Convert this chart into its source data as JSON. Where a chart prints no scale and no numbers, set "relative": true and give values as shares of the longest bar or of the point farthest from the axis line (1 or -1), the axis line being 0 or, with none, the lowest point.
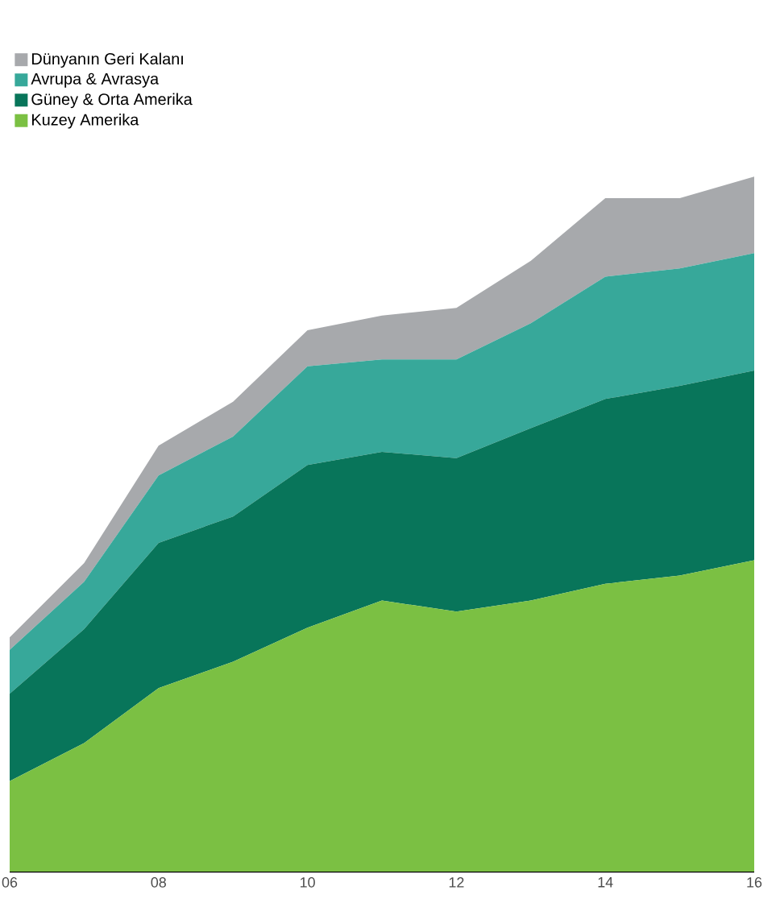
{
  "chart_data": {
    "type": "area",
    "stacked": true,
    "relative": true,
    "tick_labels": "x",
    "legend": "top left",
    "categories": [
      "06",
      null,
      "08",
      null,
      "10",
      null,
      "12",
      null,
      "14",
      null,
      "16"
    ],
    "series": [
      {
        "name": "Kuzey Amerika",
        "color": "#7bc043",
        "values": [
          0.13,
          0.185,
          0.264,
          0.302,
          0.351,
          0.39,
          0.374,
          0.39,
          0.414,
          0.426,
          0.448
        ]
      },
      {
        "name": "Güney & Orta Amerika",
        "color": "#08755a",
        "values": [
          0.126,
          0.164,
          0.209,
          0.209,
          0.234,
          0.214,
          0.221,
          0.248,
          0.266,
          0.273,
          0.273
        ]
      },
      {
        "name": "Avrupa & Avrasya",
        "color": "#37a89a",
        "values": [
          0.063,
          0.068,
          0.097,
          0.115,
          0.142,
          0.133,
          0.142,
          0.151,
          0.176,
          0.169,
          0.169
        ]
      },
      {
        "name": "Dünyanın Geri Kalanı",
        "color": "#a7a9ac",
        "values": [
          0.018,
          0.027,
          0.043,
          0.05,
          0.052,
          0.063,
          0.074,
          0.09,
          0.113,
          0.101,
          0.11
        ]
      }
    ]
  }
}
